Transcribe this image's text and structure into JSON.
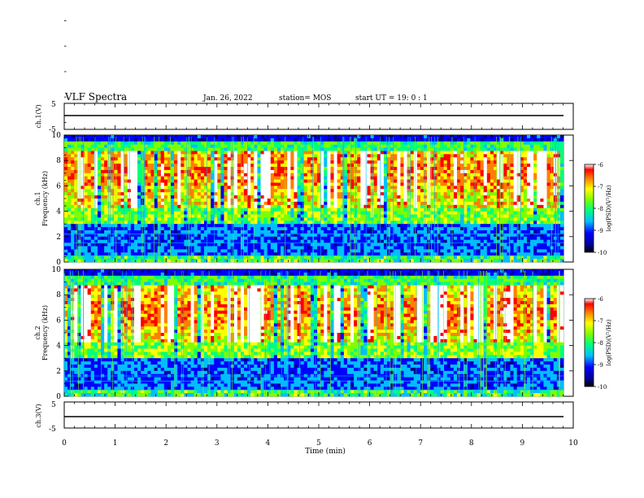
{
  "header": {
    "title": "VLF Spectra",
    "date": "Jan. 26, 2022",
    "station": "station= MOS",
    "start": "start  UT =   19: 0  : 1"
  },
  "chart_data": [
    {
      "type": "line",
      "panel": "ch1-waveform",
      "ylabel": "ch.1(V)",
      "ylim": [
        -5,
        5
      ],
      "yticks": [
        "5",
        "-5"
      ],
      "series": [
        {
          "values": [
            0
          ]
        }
      ]
    },
    {
      "type": "heatmap",
      "panel": "ch1-spectrogram",
      "ylabel_channel": "ch.1",
      "ylabel": "Frequency (kHz)",
      "ylim": [
        0,
        10
      ],
      "yticks": [
        "0",
        "2",
        "4",
        "6",
        "8",
        "10"
      ],
      "xlim": [
        0,
        10
      ],
      "colorbar": {
        "label": "log(PSD)(V²/Hz)",
        "ticks": [
          "-6",
          "-7",
          "-8",
          "-9",
          "-10"
        ],
        "range": [
          -10,
          -6
        ]
      }
    },
    {
      "type": "heatmap",
      "panel": "ch2-spectrogram",
      "ylabel_channel": "ch.2",
      "ylabel": "Frequency (kHz)",
      "ylim": [
        0,
        10
      ],
      "yticks": [
        "0",
        "2",
        "4",
        "6",
        "8",
        "10"
      ],
      "xlim": [
        0,
        10
      ],
      "colorbar": {
        "label": "log(PSD)(V²/Hz)",
        "ticks": [
          "-6",
          "-7",
          "-8",
          "-9",
          "-10"
        ],
        "range": [
          -10,
          -6
        ]
      }
    },
    {
      "type": "line",
      "panel": "ch3-waveform",
      "ylabel": "ch.3(V)",
      "ylim": [
        -5,
        5
      ],
      "yticks": [
        "5",
        "-5"
      ],
      "series": [
        {
          "values": [
            0
          ]
        }
      ]
    }
  ],
  "xaxis": {
    "label": "Time (min)",
    "range": [
      0,
      10
    ],
    "ticks": [
      "0",
      "1",
      "2",
      "3",
      "4",
      "5",
      "6",
      "7",
      "8",
      "9",
      "10"
    ]
  },
  "colors": {
    "colormap": [
      "#00008b",
      "#0000ff",
      "#00bfff",
      "#00ff7f",
      "#7fff00",
      "#ffff00",
      "#ff8000",
      "#ff0000",
      "#ffffff"
    ],
    "background": "#000000"
  }
}
